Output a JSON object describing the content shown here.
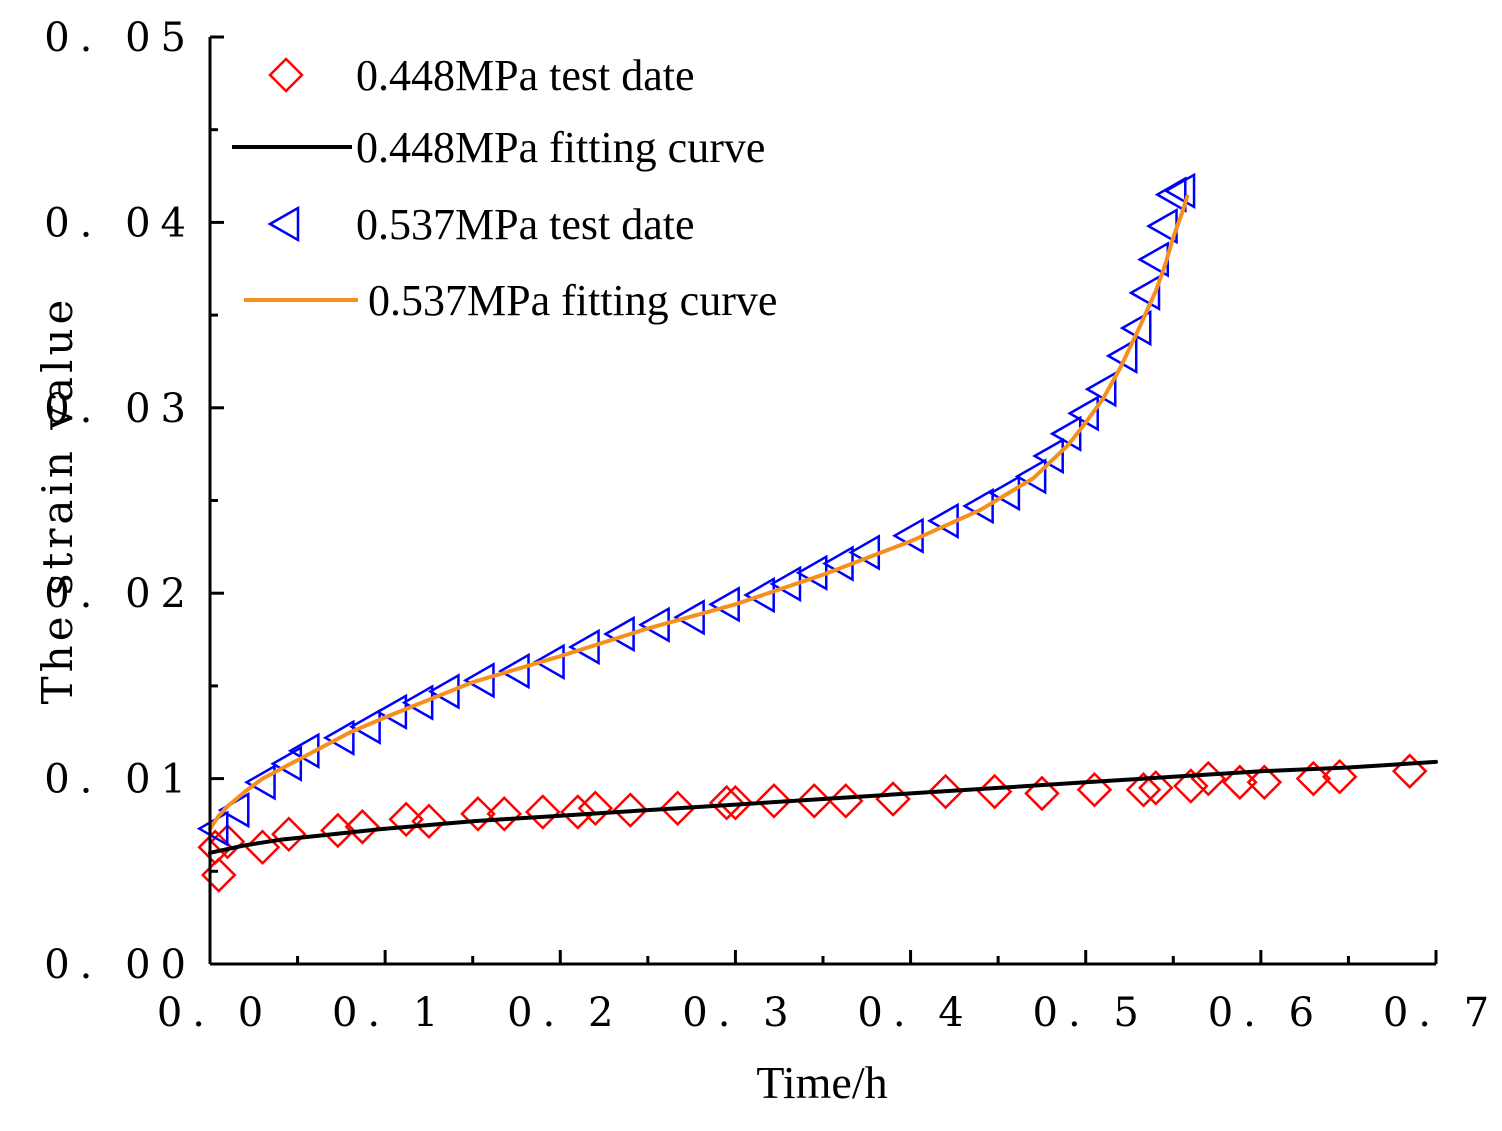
{
  "chart_data": {
    "type": "scatter",
    "title": "",
    "xlabel": "Time/h",
    "ylabel": "The strain value",
    "xlim": [
      0,
      0.7
    ],
    "ylim": [
      0,
      0.05
    ],
    "xticks": [
      0.0,
      0.1,
      0.2,
      0.3,
      0.4,
      0.5,
      0.6,
      0.7
    ],
    "xtick_labels": [
      "0. 0",
      "0. 1",
      "0. 2",
      "0. 3",
      "0. 4",
      "0. 5",
      "0. 6",
      "0. 7"
    ],
    "yticks": [
      0.0,
      0.01,
      0.02,
      0.03,
      0.04,
      0.05
    ],
    "ytick_labels": [
      "0. 00",
      "0. 01",
      "0. 02",
      "0. 03",
      "0. 04",
      "0. 05"
    ],
    "legend_position": "top-left",
    "series": [
      {
        "name": "0.448MPa test date",
        "kind": "markers",
        "marker": "diamond",
        "color": "#ff0000",
        "x": [
          0.003,
          0.005,
          0.01,
          0.03,
          0.045,
          0.073,
          0.087,
          0.112,
          0.125,
          0.153,
          0.168,
          0.19,
          0.21,
          0.22,
          0.24,
          0.267,
          0.295,
          0.3,
          0.322,
          0.345,
          0.363,
          0.39,
          0.42,
          0.448,
          0.475,
          0.505,
          0.533,
          0.54,
          0.56,
          0.57,
          0.588,
          0.602,
          0.63,
          0.645,
          0.685
        ],
        "y": [
          0.0063,
          0.0048,
          0.0066,
          0.0063,
          0.007,
          0.0072,
          0.0074,
          0.0078,
          0.0077,
          0.0081,
          0.0081,
          0.0082,
          0.0082,
          0.0084,
          0.0083,
          0.0084,
          0.0087,
          0.0087,
          0.0088,
          0.0088,
          0.0088,
          0.0089,
          0.0093,
          0.0093,
          0.0092,
          0.0094,
          0.0094,
          0.0095,
          0.0096,
          0.01,
          0.0098,
          0.0098,
          0.01,
          0.0101,
          0.0104
        ]
      },
      {
        "name": "0.448MPa fitting curve",
        "kind": "line",
        "color": "#000000",
        "x": [
          0.0,
          0.01,
          0.02,
          0.04,
          0.06,
          0.08,
          0.1,
          0.15,
          0.2,
          0.25,
          0.3,
          0.35,
          0.4,
          0.45,
          0.5,
          0.55,
          0.6,
          0.65,
          0.7
        ],
        "y": [
          0.006,
          0.0062,
          0.0064,
          0.0067,
          0.0069,
          0.0071,
          0.0073,
          0.0077,
          0.008,
          0.0083,
          0.0086,
          0.0089,
          0.0092,
          0.0095,
          0.0098,
          0.0101,
          0.0104,
          0.0106,
          0.0109
        ]
      },
      {
        "name": "0.537MPa test date",
        "kind": "markers",
        "marker": "triangle-left",
        "color": "#0000ff",
        "x": [
          0.003,
          0.015,
          0.03,
          0.045,
          0.055,
          0.075,
          0.09,
          0.105,
          0.12,
          0.135,
          0.155,
          0.175,
          0.195,
          0.215,
          0.235,
          0.255,
          0.275,
          0.295,
          0.315,
          0.33,
          0.345,
          0.36,
          0.375,
          0.4,
          0.42,
          0.44,
          0.455,
          0.47,
          0.48,
          0.49,
          0.5,
          0.51,
          0.522,
          0.53,
          0.535,
          0.54,
          0.545,
          0.55,
          0.555
        ],
        "y": [
          0.0073,
          0.0083,
          0.0098,
          0.0108,
          0.0115,
          0.0122,
          0.0128,
          0.0136,
          0.0141,
          0.0147,
          0.0153,
          0.0158,
          0.0163,
          0.0171,
          0.0178,
          0.0183,
          0.0187,
          0.0194,
          0.0199,
          0.0205,
          0.0211,
          0.0216,
          0.0222,
          0.0231,
          0.0239,
          0.0247,
          0.0254,
          0.0263,
          0.0274,
          0.0286,
          0.0297,
          0.031,
          0.0328,
          0.0343,
          0.0362,
          0.038,
          0.0398,
          0.0415,
          0.0417
        ]
      },
      {
        "name": "0.537MPa fitting curve",
        "kind": "line",
        "color": "#f5901e",
        "x": [
          0.0,
          0.005,
          0.01,
          0.02,
          0.03,
          0.05,
          0.08,
          0.1,
          0.15,
          0.2,
          0.25,
          0.3,
          0.35,
          0.4,
          0.44,
          0.47,
          0.49,
          0.5,
          0.51,
          0.52,
          0.53,
          0.54,
          0.545,
          0.55,
          0.555,
          0.558
        ],
        "y": [
          0.0073,
          0.008,
          0.0085,
          0.0093,
          0.01,
          0.011,
          0.0125,
          0.0133,
          0.0152,
          0.0166,
          0.0181,
          0.0194,
          0.021,
          0.0228,
          0.0245,
          0.0262,
          0.028,
          0.0292,
          0.0305,
          0.0322,
          0.0342,
          0.0363,
          0.0376,
          0.0392,
          0.0405,
          0.0414
        ]
      }
    ]
  }
}
